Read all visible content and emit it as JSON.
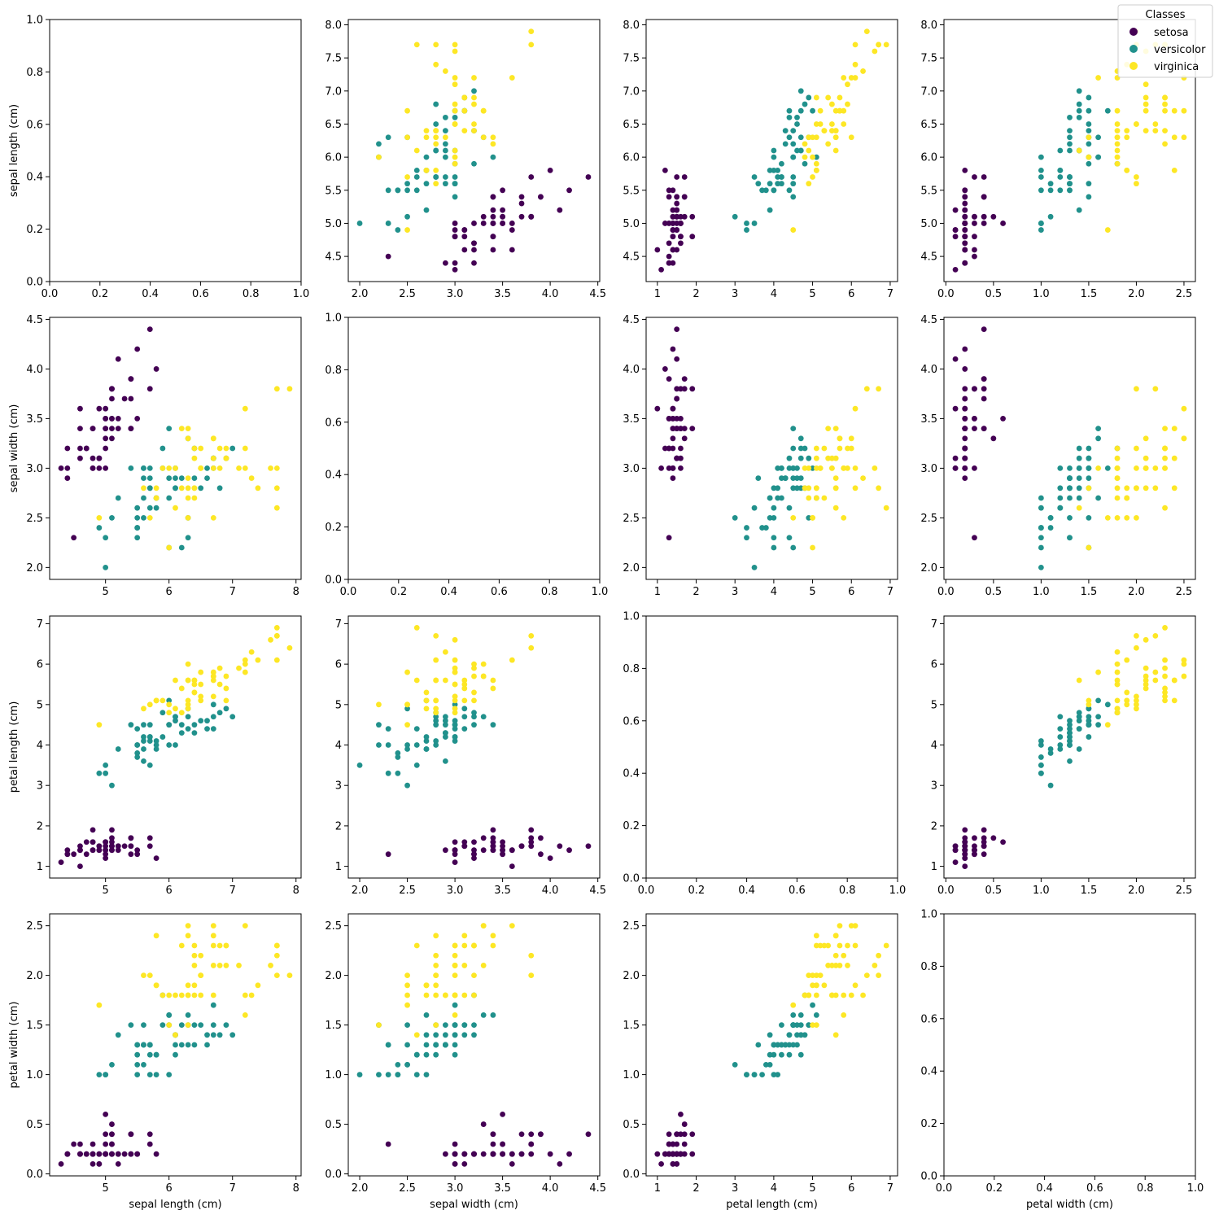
{
  "chart_data": {
    "type": "scatter",
    "legend": {
      "title": "Classes",
      "placement": "top-right",
      "entries": [
        {
          "name": "setosa",
          "color": "#440154"
        },
        {
          "name": "versicolor",
          "color": "#21918c"
        },
        {
          "name": "virginica",
          "color": "#fde725"
        }
      ]
    },
    "features": [
      "sepal length (cm)",
      "sepal width (cm)",
      "petal length (cm)",
      "petal width (cm)"
    ],
    "axes_ranges": {
      "sepal length (cm)": [
        4.12,
        8.08
      ],
      "sepal width (cm)": [
        1.88,
        4.52
      ],
      "petal length (cm)": [
        0.71,
        7.19
      ],
      "petal width (cm)": [
        -0.02,
        2.62
      ]
    },
    "ticks": {
      "sepal length (cm)": {
        "as_x": [
          "5",
          "6",
          "7",
          "8"
        ],
        "as_y": [
          "4.5",
          "5.0",
          "5.5",
          "6.0",
          "6.5",
          "7.0",
          "7.5",
          "8.0"
        ]
      },
      "sepal width (cm)": {
        "as_x": [
          "2.0",
          "2.5",
          "3.0",
          "3.5",
          "4.0",
          "4.5"
        ],
        "as_y": [
          "2.0",
          "2.5",
          "3.0",
          "3.5",
          "4.0",
          "4.5"
        ]
      },
      "petal length (cm)": {
        "as_x": [
          "1",
          "2",
          "3",
          "4",
          "5",
          "6",
          "7"
        ],
        "as_y": [
          "1",
          "2",
          "3",
          "4",
          "5",
          "6",
          "7"
        ]
      },
      "petal width (cm)": {
        "as_x": [
          "0.0",
          "0.5",
          "1.0",
          "1.5",
          "2.0",
          "2.5"
        ],
        "as_y": [
          "0.0",
          "0.5",
          "1.0",
          "1.5",
          "2.0",
          "2.5"
        ]
      },
      "empty": [
        "0.0",
        "0.2",
        "0.4",
        "0.6",
        "0.8",
        "1.0"
      ]
    },
    "diagonal_empty": true,
    "grid": false,
    "series": [
      {
        "name": "setosa",
        "color": "#440154",
        "points": [
          [
            5.1,
            3.5,
            1.4,
            0.2
          ],
          [
            4.9,
            3.0,
            1.4,
            0.2
          ],
          [
            4.7,
            3.2,
            1.3,
            0.2
          ],
          [
            4.6,
            3.1,
            1.5,
            0.2
          ],
          [
            5.0,
            3.6,
            1.4,
            0.2
          ],
          [
            5.4,
            3.9,
            1.7,
            0.4
          ],
          [
            4.6,
            3.4,
            1.4,
            0.3
          ],
          [
            5.0,
            3.4,
            1.5,
            0.2
          ],
          [
            4.4,
            2.9,
            1.4,
            0.2
          ],
          [
            4.9,
            3.1,
            1.5,
            0.1
          ],
          [
            5.4,
            3.7,
            1.5,
            0.2
          ],
          [
            4.8,
            3.4,
            1.6,
            0.2
          ],
          [
            4.8,
            3.0,
            1.4,
            0.1
          ],
          [
            4.3,
            3.0,
            1.1,
            0.1
          ],
          [
            5.8,
            4.0,
            1.2,
            0.2
          ],
          [
            5.7,
            4.4,
            1.5,
            0.4
          ],
          [
            5.4,
            3.9,
            1.3,
            0.4
          ],
          [
            5.1,
            3.5,
            1.4,
            0.3
          ],
          [
            5.7,
            3.8,
            1.7,
            0.3
          ],
          [
            5.1,
            3.8,
            1.5,
            0.3
          ],
          [
            5.4,
            3.4,
            1.7,
            0.2
          ],
          [
            5.1,
            3.7,
            1.5,
            0.4
          ],
          [
            4.6,
            3.6,
            1.0,
            0.2
          ],
          [
            5.1,
            3.3,
            1.7,
            0.5
          ],
          [
            4.8,
            3.4,
            1.9,
            0.2
          ],
          [
            5.0,
            3.0,
            1.6,
            0.2
          ],
          [
            5.0,
            3.4,
            1.6,
            0.4
          ],
          [
            5.2,
            3.5,
            1.5,
            0.2
          ],
          [
            5.2,
            3.4,
            1.4,
            0.2
          ],
          [
            4.7,
            3.2,
            1.6,
            0.2
          ],
          [
            4.8,
            3.1,
            1.6,
            0.2
          ],
          [
            5.4,
            3.4,
            1.5,
            0.4
          ],
          [
            5.2,
            4.1,
            1.5,
            0.1
          ],
          [
            5.5,
            4.2,
            1.4,
            0.2
          ],
          [
            4.9,
            3.1,
            1.5,
            0.2
          ],
          [
            5.0,
            3.2,
            1.2,
            0.2
          ],
          [
            5.5,
            3.5,
            1.3,
            0.2
          ],
          [
            4.9,
            3.6,
            1.4,
            0.1
          ],
          [
            4.4,
            3.0,
            1.3,
            0.2
          ],
          [
            5.1,
            3.4,
            1.5,
            0.2
          ],
          [
            5.0,
            3.5,
            1.3,
            0.3
          ],
          [
            4.5,
            2.3,
            1.3,
            0.3
          ],
          [
            4.4,
            3.2,
            1.3,
            0.2
          ],
          [
            5.0,
            3.5,
            1.6,
            0.6
          ],
          [
            5.1,
            3.8,
            1.9,
            0.4
          ],
          [
            4.8,
            3.0,
            1.4,
            0.3
          ],
          [
            5.1,
            3.8,
            1.6,
            0.2
          ],
          [
            4.6,
            3.2,
            1.4,
            0.2
          ],
          [
            5.3,
            3.7,
            1.5,
            0.2
          ],
          [
            5.0,
            3.3,
            1.4,
            0.2
          ]
        ]
      },
      {
        "name": "versicolor",
        "color": "#21918c",
        "points": [
          [
            7.0,
            3.2,
            4.7,
            1.4
          ],
          [
            6.4,
            3.2,
            4.5,
            1.5
          ],
          [
            6.9,
            3.1,
            4.9,
            1.5
          ],
          [
            5.5,
            2.3,
            4.0,
            1.3
          ],
          [
            6.5,
            2.8,
            4.6,
            1.5
          ],
          [
            5.7,
            2.8,
            4.5,
            1.3
          ],
          [
            6.3,
            3.3,
            4.7,
            1.6
          ],
          [
            4.9,
            2.4,
            3.3,
            1.0
          ],
          [
            6.6,
            2.9,
            4.6,
            1.3
          ],
          [
            5.2,
            2.7,
            3.9,
            1.4
          ],
          [
            5.0,
            2.0,
            3.5,
            1.0
          ],
          [
            5.9,
            3.0,
            4.2,
            1.5
          ],
          [
            6.0,
            2.2,
            4.0,
            1.0
          ],
          [
            6.1,
            2.9,
            4.7,
            1.4
          ],
          [
            5.6,
            2.9,
            3.6,
            1.3
          ],
          [
            6.7,
            3.1,
            4.4,
            1.4
          ],
          [
            5.6,
            3.0,
            4.5,
            1.5
          ],
          [
            5.8,
            2.7,
            4.1,
            1.0
          ],
          [
            6.2,
            2.2,
            4.5,
            1.5
          ],
          [
            5.6,
            2.5,
            3.9,
            1.1
          ],
          [
            5.9,
            3.2,
            4.8,
            1.8
          ],
          [
            6.1,
            2.8,
            4.0,
            1.3
          ],
          [
            6.3,
            2.5,
            4.9,
            1.5
          ],
          [
            6.1,
            2.8,
            4.7,
            1.2
          ],
          [
            6.4,
            2.9,
            4.3,
            1.3
          ],
          [
            6.6,
            3.0,
            4.4,
            1.4
          ],
          [
            6.8,
            2.8,
            4.8,
            1.4
          ],
          [
            6.7,
            3.0,
            5.0,
            1.7
          ],
          [
            6.0,
            2.9,
            4.5,
            1.5
          ],
          [
            5.7,
            2.6,
            3.5,
            1.0
          ],
          [
            5.5,
            2.4,
            3.8,
            1.1
          ],
          [
            5.5,
            2.4,
            3.7,
            1.0
          ],
          [
            5.8,
            2.7,
            3.9,
            1.2
          ],
          [
            6.0,
            2.7,
            5.1,
            1.6
          ],
          [
            5.4,
            3.0,
            4.5,
            1.5
          ],
          [
            6.0,
            3.4,
            4.5,
            1.6
          ],
          [
            6.7,
            3.1,
            4.7,
            1.5
          ],
          [
            6.3,
            2.3,
            4.4,
            1.3
          ],
          [
            5.6,
            3.0,
            4.1,
            1.3
          ],
          [
            5.5,
            2.5,
            4.0,
            1.3
          ],
          [
            5.5,
            2.6,
            4.4,
            1.2
          ],
          [
            6.1,
            3.0,
            4.6,
            1.4
          ],
          [
            5.8,
            2.6,
            4.0,
            1.2
          ],
          [
            5.0,
            2.3,
            3.3,
            1.0
          ],
          [
            5.6,
            2.7,
            4.2,
            1.3
          ],
          [
            5.7,
            3.0,
            4.2,
            1.2
          ],
          [
            5.7,
            2.9,
            4.2,
            1.3
          ],
          [
            6.2,
            2.9,
            4.3,
            1.3
          ],
          [
            5.1,
            2.5,
            3.0,
            1.1
          ],
          [
            5.7,
            2.8,
            4.1,
            1.3
          ]
        ]
      },
      {
        "name": "virginica",
        "color": "#fde725",
        "points": [
          [
            6.3,
            3.3,
            6.0,
            2.5
          ],
          [
            5.8,
            2.7,
            5.1,
            1.9
          ],
          [
            7.1,
            3.0,
            5.9,
            2.1
          ],
          [
            6.3,
            2.9,
            5.6,
            1.8
          ],
          [
            6.5,
            3.0,
            5.8,
            2.2
          ],
          [
            7.6,
            3.0,
            6.6,
            2.1
          ],
          [
            4.9,
            2.5,
            4.5,
            1.7
          ],
          [
            7.3,
            2.9,
            6.3,
            1.8
          ],
          [
            6.7,
            2.5,
            5.8,
            1.8
          ],
          [
            7.2,
            3.6,
            6.1,
            2.5
          ],
          [
            6.5,
            3.2,
            5.1,
            2.0
          ],
          [
            6.4,
            2.7,
            5.3,
            1.9
          ],
          [
            6.8,
            3.0,
            5.5,
            2.1
          ],
          [
            5.7,
            2.5,
            5.0,
            2.0
          ],
          [
            5.8,
            2.8,
            5.1,
            2.4
          ],
          [
            6.4,
            3.2,
            5.3,
            2.3
          ],
          [
            6.5,
            3.0,
            5.5,
            1.8
          ],
          [
            7.7,
            3.8,
            6.7,
            2.2
          ],
          [
            7.7,
            2.6,
            6.9,
            2.3
          ],
          [
            6.0,
            2.2,
            5.0,
            1.5
          ],
          [
            6.9,
            3.2,
            5.7,
            2.3
          ],
          [
            5.6,
            2.8,
            4.9,
            2.0
          ],
          [
            7.7,
            2.8,
            6.7,
            2.0
          ],
          [
            6.3,
            2.7,
            4.9,
            1.8
          ],
          [
            6.7,
            3.3,
            5.7,
            2.1
          ],
          [
            7.2,
            3.2,
            6.0,
            1.8
          ],
          [
            6.2,
            2.8,
            4.8,
            1.8
          ],
          [
            6.1,
            3.0,
            4.9,
            1.8
          ],
          [
            6.4,
            2.8,
            5.6,
            2.1
          ],
          [
            7.2,
            3.0,
            5.8,
            1.6
          ],
          [
            7.4,
            2.8,
            6.1,
            1.9
          ],
          [
            7.9,
            3.8,
            6.4,
            2.0
          ],
          [
            6.4,
            2.8,
            5.6,
            2.2
          ],
          [
            6.3,
            2.8,
            5.1,
            1.5
          ],
          [
            6.1,
            2.6,
            5.6,
            1.4
          ],
          [
            7.7,
            3.0,
            6.1,
            2.3
          ],
          [
            6.3,
            3.4,
            5.6,
            2.4
          ],
          [
            6.4,
            3.1,
            5.5,
            1.8
          ],
          [
            6.0,
            3.0,
            4.8,
            1.8
          ],
          [
            6.9,
            3.1,
            5.4,
            2.1
          ],
          [
            6.7,
            3.1,
            5.6,
            2.4
          ],
          [
            6.9,
            3.1,
            5.1,
            2.3
          ],
          [
            5.8,
            2.7,
            5.1,
            1.9
          ],
          [
            6.8,
            3.2,
            5.9,
            2.3
          ],
          [
            6.7,
            3.3,
            5.7,
            2.5
          ],
          [
            6.7,
            3.0,
            5.2,
            2.3
          ],
          [
            6.3,
            2.5,
            5.0,
            1.9
          ],
          [
            6.5,
            3.0,
            5.2,
            2.0
          ],
          [
            6.2,
            3.4,
            5.4,
            2.3
          ],
          [
            5.9,
            3.0,
            5.1,
            1.8
          ]
        ]
      }
    ]
  }
}
